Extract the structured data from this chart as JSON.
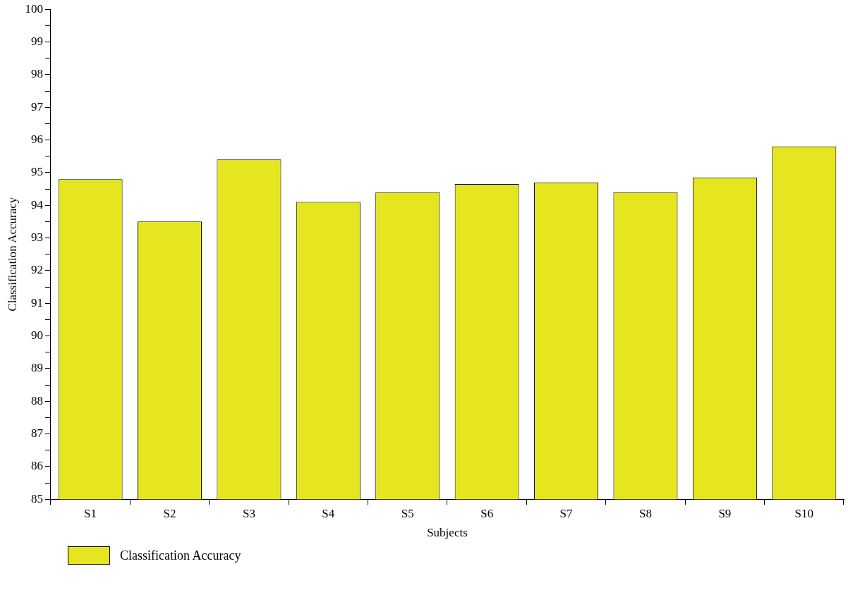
{
  "chart_data": {
    "type": "bar",
    "xlabel": "Subjects",
    "ylabel": "Classification Accuracy",
    "categories": [
      "S1",
      "S2",
      "S3",
      "S4",
      "S5",
      "S6",
      "S7",
      "S8",
      "S9",
      "S10"
    ],
    "series": [
      {
        "name": "Classification Accuracy",
        "color": "#e6e620",
        "values": [
          94.8,
          93.5,
          95.4,
          94.1,
          94.4,
          94.65,
          94.7,
          94.4,
          94.85,
          95.8
        ]
      }
    ],
    "ylim": [
      85,
      100
    ],
    "yticks": [
      85,
      {
        "value": 85.5,
        "label": null
      },
      86,
      {
        "value": 86.5,
        "label": null
      },
      87,
      {
        "value": 87.5,
        "label": null
      },
      88,
      {
        "value": 88.5,
        "label": null
      },
      89,
      {
        "value": 89.5,
        "label": null
      },
      90,
      {
        "value": 90.5,
        "label": null
      },
      91,
      {
        "value": 91.5,
        "label": null
      },
      92,
      {
        "value": 92.5,
        "label": null
      },
      93,
      {
        "value": 93.5,
        "label": null
      },
      94,
      {
        "value": 94.5,
        "label": null
      },
      95,
      {
        "value": 95.5,
        "label": null
      },
      96,
      {
        "value": 96.5,
        "label": null
      },
      97,
      {
        "value": 97.5,
        "label": null
      },
      98,
      {
        "value": 98.5,
        "label": null
      },
      99,
      {
        "value": 99.5,
        "label": null
      },
      100
    ],
    "grid": false,
    "legend": "bottom left"
  }
}
